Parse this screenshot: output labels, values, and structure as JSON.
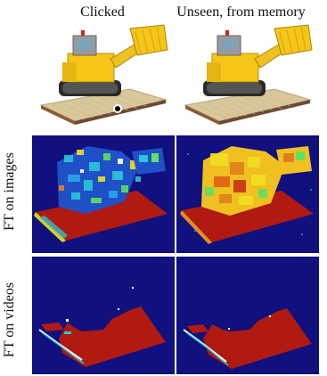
{
  "columns": {
    "clicked": "Clicked",
    "unseen": "Unseen, from memory"
  },
  "rows": {
    "images": "FT on images",
    "videos": "FT on videos"
  },
  "colors": {
    "heatmap_background": "#10107e",
    "heatmap_hot": "#a50f0f",
    "heatmap_mid": "#28c8d8",
    "heatmap_warm": "#f0e020",
    "lego_yellow": "#f5c518",
    "lego_grey": "#8a8a8a",
    "lego_base": "#d8c79a"
  }
}
